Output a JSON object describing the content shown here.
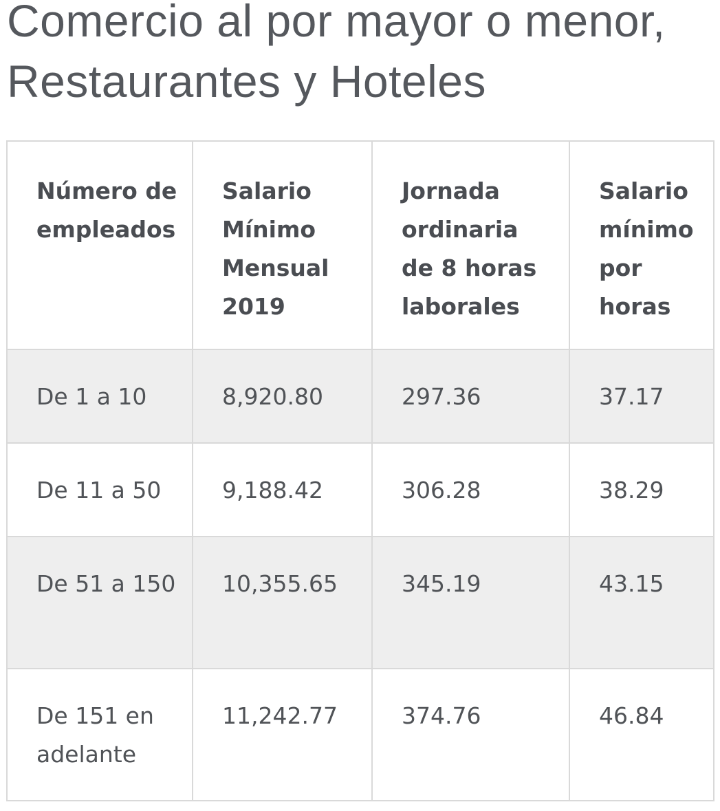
{
  "title": "Comercio al por mayor o menor, Restaurantes y Hoteles",
  "table": {
    "headers": [
      "Número de empleados",
      "Salario Mínimo Mensual 2019",
      "Jornada ordinaria de 8 horas laborales",
      "Salario mínimo por horas"
    ],
    "rows": [
      [
        "De 1 a 10",
        "8,920.80",
        "297.36",
        "37.17"
      ],
      [
        "De 11 a 50",
        "9,188.42",
        "306.28",
        "38.29"
      ],
      [
        "De 51 a 150",
        "10,355.65",
        "345.19",
        "43.15"
      ],
      [
        "De 151 en adelante",
        "11,242.77",
        "374.76",
        "46.84"
      ]
    ]
  },
  "colors": {
    "title": "#55585d",
    "text": "#505357",
    "border": "#d9d9d9",
    "shaded_row": "#eeeeee"
  }
}
